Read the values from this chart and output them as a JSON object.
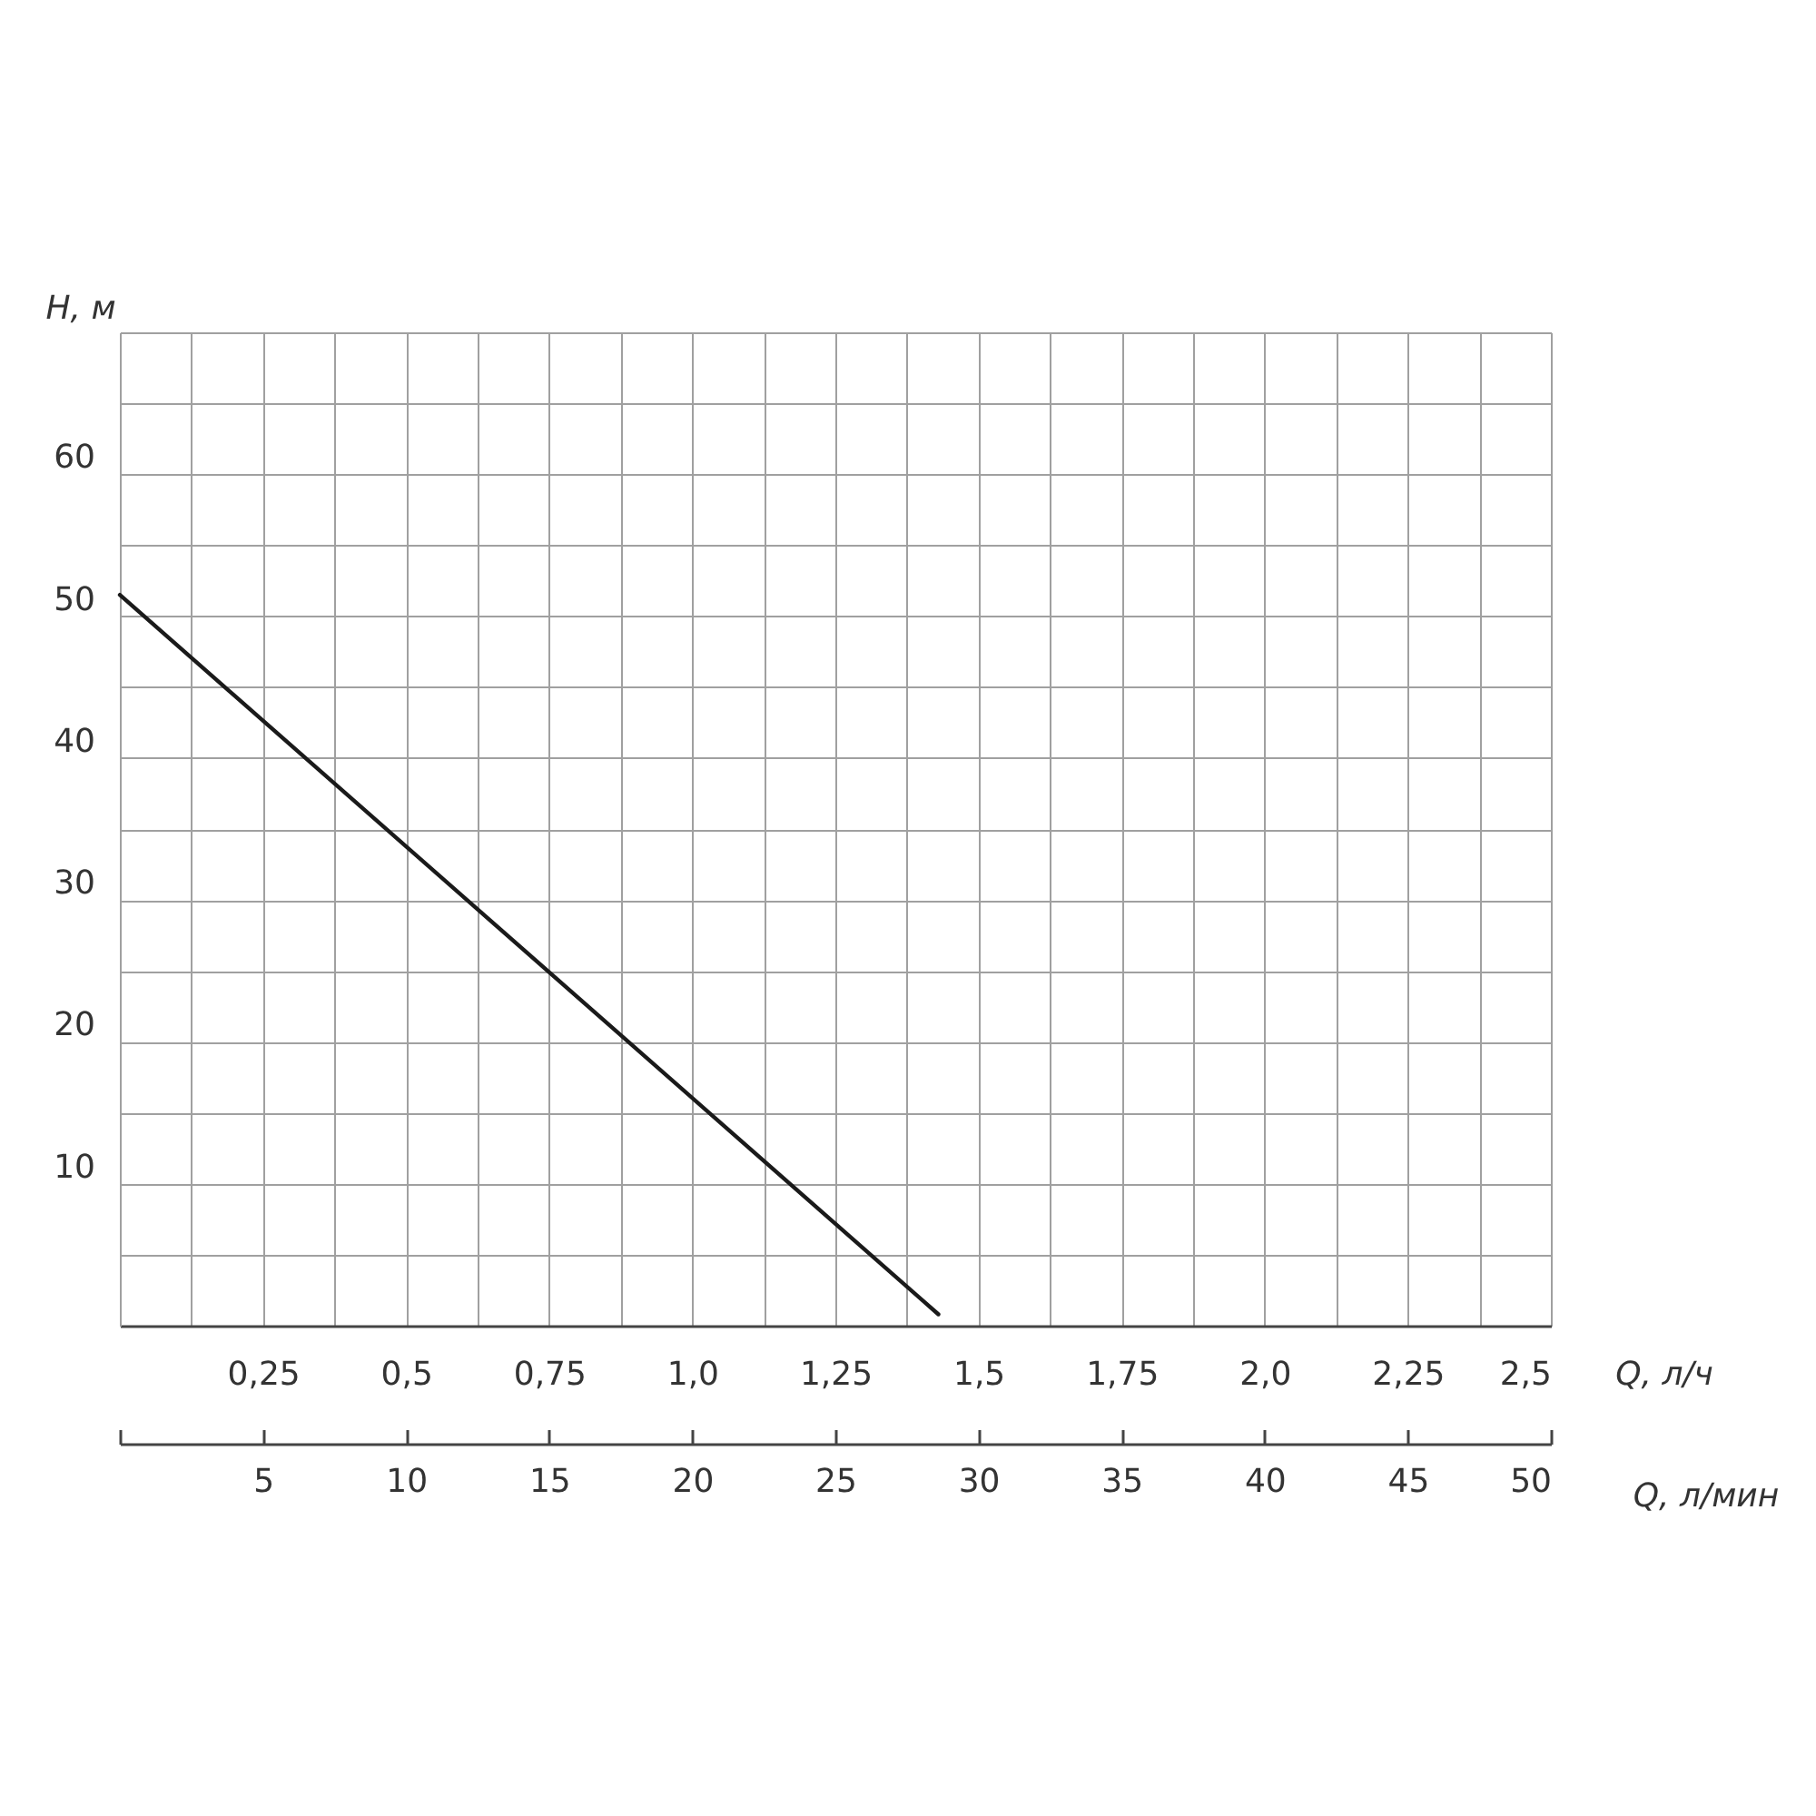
{
  "chart_data": {
    "type": "line",
    "xlabel": "Q, л/ч",
    "x2label": "Q, л/мин",
    "ylabel": "H, м",
    "x": [
      0,
      1.43
    ],
    "series": [
      {
        "color": "#1a1a1a",
        "values": [
          51.5,
          0.8
        ]
      }
    ],
    "xlim": [
      0,
      2.5
    ],
    "xticks": [
      {
        "value": 0,
        "label": null
      },
      {
        "value": 0.125,
        "label": null
      },
      {
        "value": 0.25,
        "label": "0,25"
      },
      {
        "value": 0.375,
        "label": null
      },
      {
        "value": 0.5,
        "label": "0,5"
      },
      {
        "value": 0.625,
        "label": null
      },
      {
        "value": 0.75,
        "label": "0,75"
      },
      {
        "value": 0.875,
        "label": null
      },
      {
        "value": 1,
        "label": "1,0"
      },
      {
        "value": 1.125,
        "label": null
      },
      {
        "value": 1.25,
        "label": "1,25"
      },
      {
        "value": 1.375,
        "label": null
      },
      {
        "value": 1.5,
        "label": "1,5"
      },
      {
        "value": 1.625,
        "label": null
      },
      {
        "value": 1.75,
        "label": "1,75"
      },
      {
        "value": 1.875,
        "label": null
      },
      {
        "value": 2,
        "label": "2,0"
      },
      {
        "value": 2.125,
        "label": null
      },
      {
        "value": 2.25,
        "label": "2,25"
      },
      {
        "value": 2.375,
        "label": null
      },
      {
        "value": 2.5,
        "label": "2,5"
      }
    ],
    "x2lim": [
      0,
      50
    ],
    "x2ticks": [
      {
        "value": 0,
        "label": null
      },
      5,
      10,
      15,
      20,
      25,
      30,
      35,
      40,
      45,
      50
    ],
    "ylim": [
      0,
      70
    ],
    "yticks": [
      {
        "value": 0,
        "label": null
      },
      {
        "value": 5,
        "label": null
      },
      10,
      {
        "value": 15,
        "label": null
      },
      20,
      {
        "value": 25,
        "label": null
      },
      30,
      {
        "value": 35,
        "label": null
      },
      40,
      {
        "value": 45,
        "label": null
      },
      50,
      {
        "value": 55,
        "label": null
      },
      60,
      {
        "value": 65,
        "label": null
      },
      {
        "value": 70,
        "label": null
      }
    ],
    "grid": true,
    "marker": "none",
    "line_style": "solid"
  }
}
